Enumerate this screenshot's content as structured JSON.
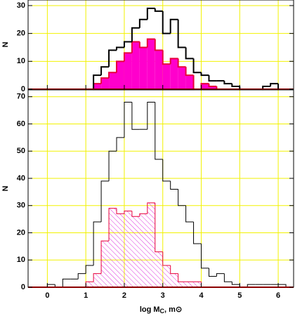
{
  "chart_data": [
    {
      "type": "histogram",
      "y_label": "N",
      "grid": true,
      "grid_color": "#f2f200",
      "xlim": [
        -0.5,
        6.4
      ],
      "ylim": [
        0,
        32
      ],
      "xticks": [
        0,
        1,
        2,
        3,
        4,
        5,
        6
      ],
      "yticks": [
        0,
        10,
        20,
        30
      ],
      "x_tick_labels": false,
      "bins": [
        0,
        0.2,
        0.4,
        0.6,
        0.8,
        1,
        1.2,
        1.4,
        1.6,
        1.8,
        2,
        2.2,
        2.4,
        2.6,
        2.8,
        3,
        3.2,
        3.4,
        3.6,
        3.8,
        4,
        4.2,
        4.4,
        4.6,
        4.8,
        5,
        5.2,
        5.4,
        5.6,
        5.8,
        6,
        6.2
      ],
      "series": [
        {
          "color": "#e8003a",
          "fill": "solid",
          "fill_color": "#ff00cc",
          "values": [
            0,
            0,
            0,
            0,
            0,
            0,
            2,
            4,
            6,
            10,
            13,
            17,
            15,
            18,
            14,
            9,
            11,
            8,
            5,
            0,
            2,
            1,
            0,
            0,
            0,
            0,
            0,
            0,
            0,
            0,
            0
          ]
        },
        {
          "color": "#000000",
          "fill": "none",
          "values": [
            0,
            0,
            0,
            0,
            0,
            0,
            5,
            8,
            14,
            15,
            17,
            22,
            25,
            29,
            28,
            20,
            25,
            15,
            11,
            6,
            5,
            3,
            3,
            2,
            1,
            0,
            0,
            0,
            1,
            2,
            0
          ]
        }
      ]
    },
    {
      "type": "histogram",
      "y_label": "N",
      "grid": true,
      "grid_color": "#f2f200",
      "x_label": "log M",
      "x_label_subscript": "C",
      "x_label_unit": ", m⊙",
      "xlim": [
        -0.5,
        6.4
      ],
      "ylim": [
        0,
        72.5
      ],
      "xticks": [
        0,
        1,
        2,
        3,
        4,
        5,
        6
      ],
      "yticks": [
        0,
        10,
        20,
        30,
        40,
        50,
        60,
        70
      ],
      "x_tick_labels": true,
      "bins": [
        0,
        0.2,
        0.4,
        0.6,
        0.8,
        1,
        1.2,
        1.4,
        1.6,
        1.8,
        2,
        2.2,
        2.4,
        2.6,
        2.8,
        3,
        3.2,
        3.4,
        3.6,
        3.8,
        4,
        4.2,
        4.4,
        4.6,
        4.8,
        5,
        5.2,
        5.4,
        5.6,
        5.8,
        6,
        6.2
      ],
      "series": [
        {
          "color": "#e8003a",
          "fill": "hatch",
          "fill_color": "#dd33dd",
          "values": [
            0,
            0,
            0,
            0,
            0,
            2,
            5,
            17,
            29,
            27,
            28,
            26,
            27,
            31,
            13,
            8,
            5,
            2,
            2,
            2,
            0,
            0,
            0,
            0,
            0,
            0,
            0,
            0,
            0,
            0,
            0
          ]
        },
        {
          "color": "#000000",
          "fill": "none",
          "values": [
            1,
            0,
            3,
            3,
            5,
            8,
            24,
            39,
            50,
            55,
            68,
            58,
            58,
            68,
            47,
            39,
            36,
            30,
            24,
            16,
            7,
            4,
            5,
            2,
            1,
            0,
            1,
            1,
            1,
            1,
            1
          ]
        }
      ]
    }
  ]
}
